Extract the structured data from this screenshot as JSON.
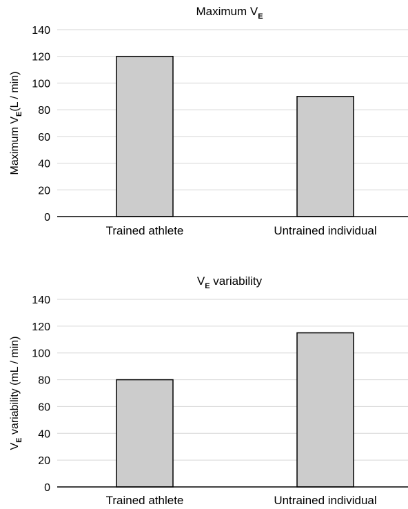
{
  "chart_data": [
    {
      "type": "bar",
      "title": "Maximum V",
      "title_sub": "E",
      "ylabel_pre": "Maximum V",
      "ylabel_sub": "E",
      "ylabel_post": "(L / min)",
      "categories": [
        "Trained athlete",
        "Untrained individual"
      ],
      "values": [
        120,
        90
      ],
      "ylim": [
        0,
        140
      ],
      "yticks": [
        "0",
        "20",
        "40",
        "60",
        "80",
        "100",
        "120",
        "140"
      ],
      "grid": true,
      "bar_color": "#cccccc"
    },
    {
      "type": "bar",
      "title": "V",
      "title_sub": "E",
      "title_post": " variability",
      "ylabel_pre": "V",
      "ylabel_sub": "E",
      "ylabel_post": " variability (mL / min)",
      "categories": [
        "Trained athlete",
        "Untrained individual"
      ],
      "values": [
        80,
        115
      ],
      "ylim": [
        0,
        140
      ],
      "yticks": [
        "0",
        "20",
        "40",
        "60",
        "80",
        "100",
        "120",
        "140"
      ],
      "grid": true,
      "bar_color": "#cccccc"
    }
  ]
}
